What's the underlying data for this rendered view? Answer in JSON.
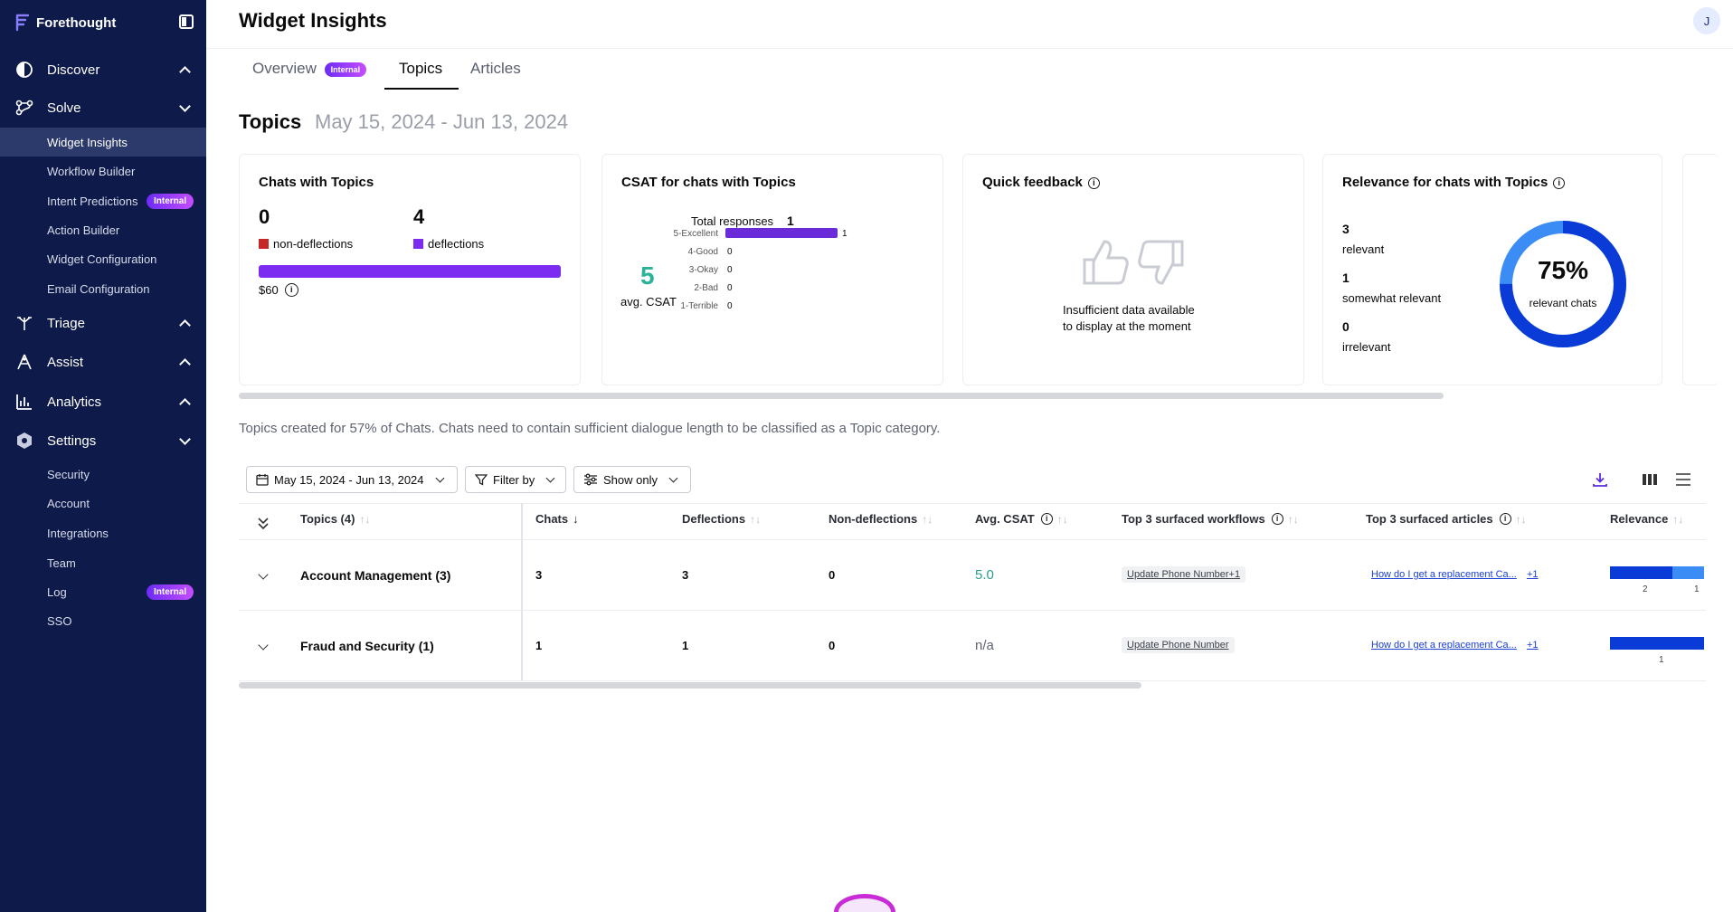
{
  "sidebar": {
    "brand": "Forethought",
    "sections": [
      {
        "label": "Discover",
        "icon": "discover-icon"
      },
      {
        "label": "Solve",
        "icon": "solve-icon"
      },
      {
        "label": "Triage",
        "icon": "triage-icon"
      },
      {
        "label": "Assist",
        "icon": "assist-icon"
      },
      {
        "label": "Analytics",
        "icon": "analytics-icon"
      },
      {
        "label": "Settings",
        "icon": "settings-icon"
      }
    ],
    "solve_items": [
      "Widget Insights",
      "Workflow Builder",
      "Intent Predictions",
      "Action Builder",
      "Widget Configuration",
      "Email Configuration"
    ],
    "settings_items": [
      "Security",
      "Account",
      "Integrations",
      "Team",
      "Log",
      "SSO"
    ],
    "internal_badge": "Internal"
  },
  "header": {
    "title": "Widget Insights",
    "avatar": "J"
  },
  "tabs": [
    {
      "label": "Overview",
      "badge": "Internal"
    },
    {
      "label": "Topics"
    },
    {
      "label": "Articles"
    }
  ],
  "section": {
    "title": "Topics",
    "range": "May 15, 2024 - Jun 13, 2024"
  },
  "cards": {
    "chats": {
      "title": "Chats with Topics",
      "non_deflections": "0",
      "deflections": "4",
      "non_deflections_label": "non-deflections",
      "deflections_label": "deflections",
      "cost": "$60",
      "deflection_share": 1.0,
      "colors": {
        "non_deflections": "#c62828",
        "deflections": "#7b2cf0"
      }
    },
    "csat": {
      "title": "CSAT for chats with Topics",
      "total_label": "Total responses",
      "total": "1",
      "avg": "5",
      "avg_label": "avg. CSAT",
      "rows": [
        {
          "label": "5-Excellent",
          "count": 1
        },
        {
          "label": "4-Good",
          "count": 0
        },
        {
          "label": "3-Okay",
          "count": 0
        },
        {
          "label": "2-Bad",
          "count": 0
        },
        {
          "label": "1-Terrible",
          "count": 0
        }
      ],
      "bar_color": "#6a2bd9",
      "avg_color": "#2bb39a"
    },
    "feedback": {
      "title": "Quick feedback",
      "line1": "Insufficient data available",
      "line2": "to display at the moment"
    },
    "relevance": {
      "title": "Relevance for chats with Topics",
      "relevant": "3",
      "relevant_label": "relevant",
      "somewhat": "1",
      "somewhat_label": "somewhat relevant",
      "irrelevant": "0",
      "irrelevant_label": "irrelevant",
      "percent": "75%",
      "percent_label": "relevant chats",
      "relevant_share": 0.75,
      "colors": {
        "relevant": "#0a3bd6",
        "somewhat": "#3b8cf5"
      }
    }
  },
  "note": "Topics created for 57% of Chats. Chats need to contain sufficient dialogue length to be classified as a Topic category.",
  "filters": {
    "date": "May 15, 2024 - Jun 13, 2024",
    "filter_by": "Filter by",
    "show_only": "Show only"
  },
  "table": {
    "headers": {
      "topics": "Topics (4)",
      "chats": "Chats",
      "deflections": "Deflections",
      "non_deflections": "Non-deflections",
      "avg_csat": "Avg. CSAT",
      "workflows": "Top 3 surfaced workflows",
      "articles": "Top 3 surfaced articles",
      "relevance": "Relevance"
    },
    "rows": [
      {
        "topic": "Account Management (3)",
        "chats": "3",
        "deflections": "3",
        "non_deflections": "0",
        "avg_csat": "5.0",
        "workflow": "Update Phone Number+1",
        "article": "How do I get a replacement Ca...",
        "article_more": "+1",
        "relevant": 2,
        "somewhat": 1,
        "relevant_label": "2",
        "somewhat_label": "1"
      },
      {
        "topic": "Fraud and Security (1)",
        "chats": "1",
        "deflections": "1",
        "non_deflections": "0",
        "avg_csat": "n/a",
        "workflow": "Update Phone Number",
        "article": "How do I get a replacement Ca...",
        "article_more": "+1",
        "relevant": 1,
        "somewhat": 0,
        "relevant_label": "1",
        "somewhat_label": ""
      }
    ]
  }
}
